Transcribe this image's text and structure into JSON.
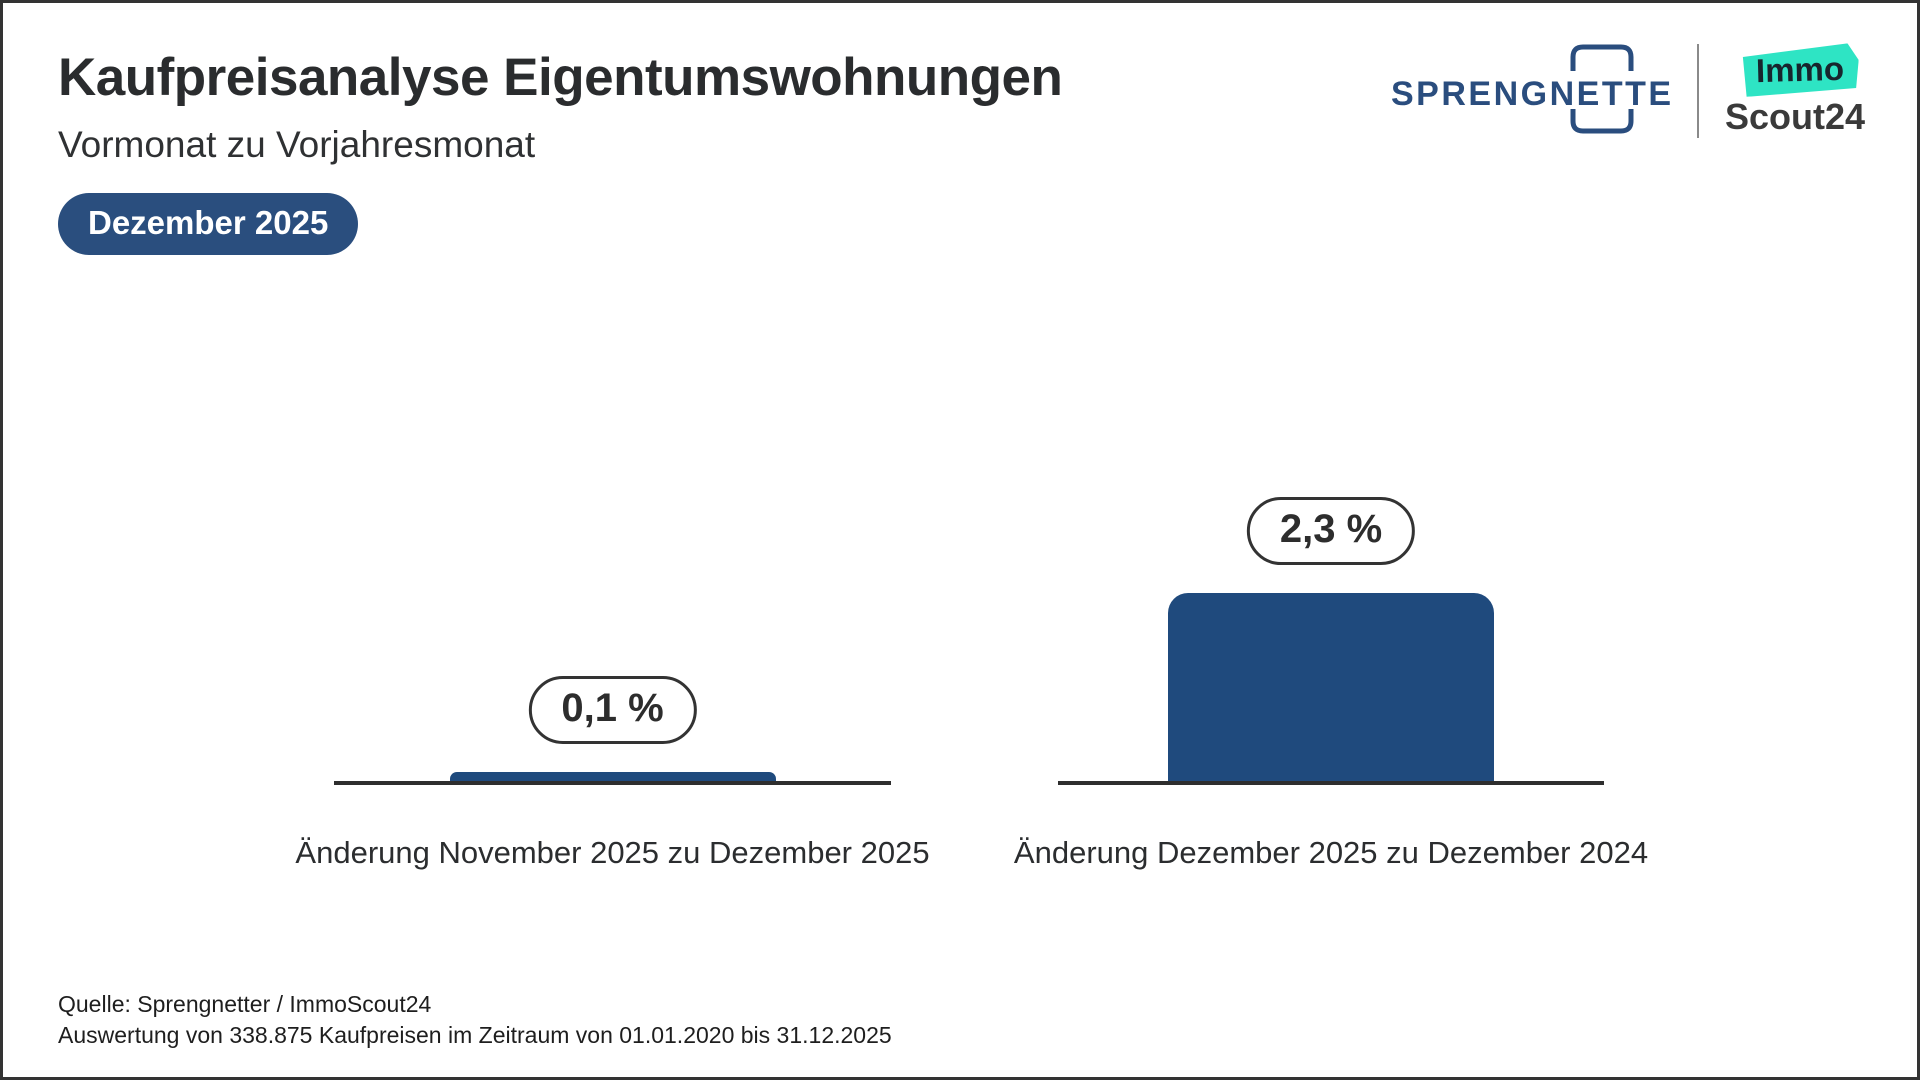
{
  "header": {
    "title": "Kaufpreisanalyse Eigentumswohnungen",
    "subtitle": "Vormonat zu Vorjahresmonat",
    "badge": "Dezember 2025"
  },
  "logos": {
    "sprengnetter": "SPRENGNETTER",
    "immoscout_line1": "Immo",
    "immoscout_line2": "Scout24"
  },
  "chart_data": {
    "type": "bar",
    "categories": [
      "Änderung November 2025 zu Dezember 2025",
      "Änderung Dezember 2025 zu Dezember 2024"
    ],
    "values": [
      0.1,
      2.3
    ],
    "value_labels": [
      "0,1 %",
      "2,3 %"
    ],
    "title": "Kaufpreisanalyse Eigentumswohnungen",
    "subtitle": "Vormonat zu Vorjahresmonat",
    "period": "Dezember 2025",
    "xlabel": "",
    "ylabel": "",
    "ylim": [
      0,
      2.6
    ],
    "unit": "%",
    "grid": false,
    "legend": false,
    "bar_color": "#1f4a7d"
  },
  "footer": {
    "line1": "Quelle: Sprengnetter / ImmoScout24",
    "line2": "Auswertung von 338.875 Kaufpreisen im Zeitraum von 01.01.2020 bis 31.12.2025"
  },
  "colors": {
    "navy": "#1f4a7d",
    "badge": "#2a4e7e",
    "teal": "#2ee4c4",
    "axis": "#2e2e2e",
    "text": "#2a2c2e"
  }
}
